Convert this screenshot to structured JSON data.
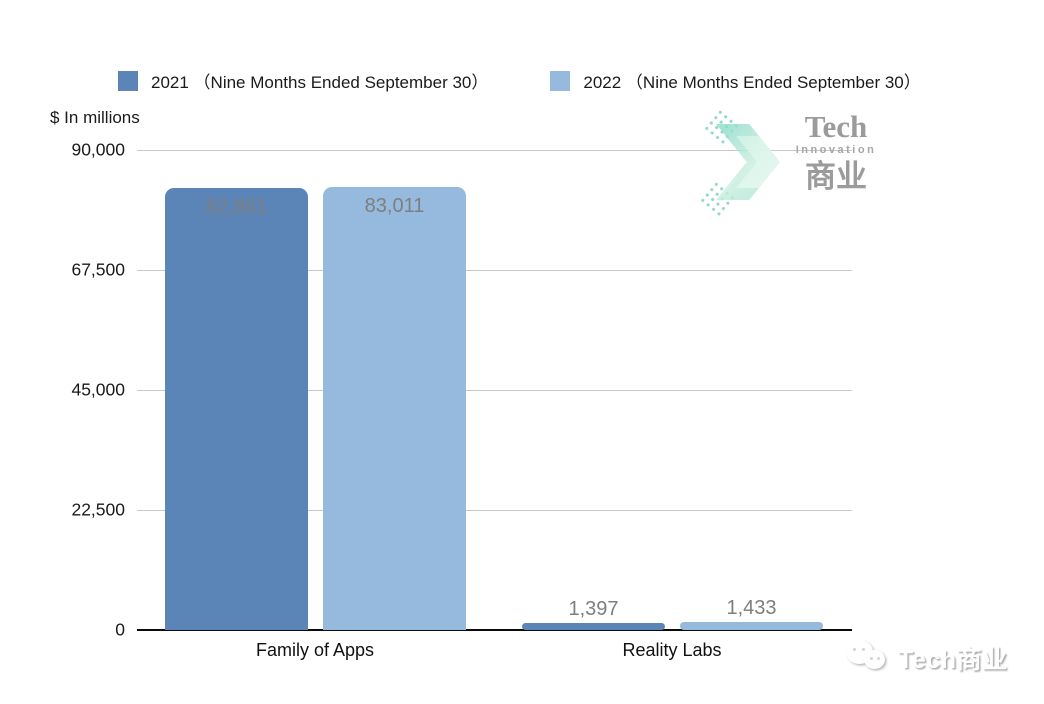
{
  "legend": {
    "items": [
      {
        "label": "2021 （Nine Months Ended September 30）",
        "color": "#5b85b7"
      },
      {
        "label": "2022 （Nine Months Ended September 30）",
        "color": "#96badd"
      }
    ]
  },
  "axis_title": "$ In millions",
  "chart_data": {
    "type": "bar",
    "title": "",
    "categories": [
      "Family of Apps",
      "Reality Labs"
    ],
    "series": [
      {
        "name": "2021 (Nine Months Ended September 30)",
        "color": "#5b85b7",
        "values": [
          82861,
          1397
        ],
        "labels": [
          "82,861",
          "1,397"
        ]
      },
      {
        "name": "2022 (Nine Months Ended September 30)",
        "color": "#96badd",
        "values": [
          83011,
          1433
        ],
        "labels": [
          "83,011",
          "1,433"
        ]
      }
    ],
    "xlabel": "",
    "ylabel": "$ In millions",
    "ylim": [
      0,
      90000
    ],
    "yticks": [
      "90,000",
      "67,500",
      "45,000",
      "22,500",
      "0"
    ],
    "grid": "horizontal",
    "legend_position": "top"
  },
  "watermarks": {
    "logo": {
      "line1": "Tech",
      "line2": "Innovation",
      "line3": "商业"
    },
    "footer": {
      "text": "Tech商业"
    }
  },
  "colors": {
    "bar_2021": "#5b85b7",
    "bar_2022": "#96badd",
    "grid": "#c9c9c9",
    "axis": "#0a0a0a",
    "value_label": "#7e7e7e"
  }
}
